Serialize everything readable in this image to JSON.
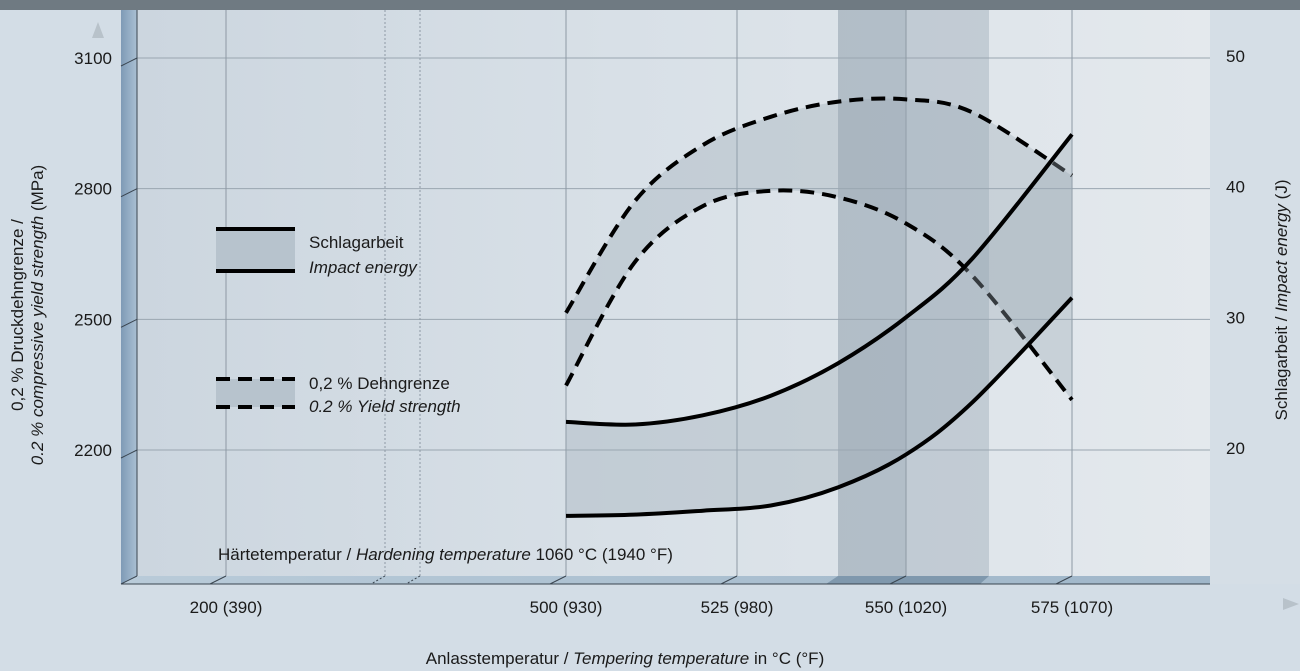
{
  "chart_data": {
    "type": "line",
    "x_tick_labels": [
      "200 (390)",
      "500 (930)",
      "525 (980)",
      "550 (1020)",
      "575 (1070)"
    ],
    "xlabel_regular": "Anlasstemperatur / ",
    "xlabel_italic": "Tempering temperature",
    "xlabel_suffix": " in °C (°F)",
    "left_axis": {
      "label_de": "0,2 % Druckdehngrenze /",
      "label_en_italic": "0.2 % compressive yield strength",
      "label_unit": " (MPa)",
      "ticks": [
        "2200",
        "2500",
        "2800",
        "3100"
      ]
    },
    "right_axis": {
      "label_de": "Schlagarbeit / ",
      "label_en_italic": "Impact energy",
      "label_unit": " (J)",
      "ticks": [
        "20",
        "30",
        "40",
        "50"
      ]
    },
    "annotation": {
      "regular": "Härtetemperatur / ",
      "italic": "Hardening temperature",
      "suffix": " 1060 °C (1940 °F)"
    },
    "legend": [
      {
        "line_style": "solid",
        "label_de": "Schlagarbeit",
        "label_en": "Impact energy"
      },
      {
        "line_style": "dashed",
        "label_de": "0,2 % Dehngrenze",
        "label_en": "0.2 % Yield strength"
      }
    ],
    "series": [
      {
        "name": "Schlagarbeit",
        "axis": "right",
        "x": [
          500,
          510,
          520,
          530,
          540,
          550,
          560,
          575
        ],
        "upper": [
          22.0,
          21.8,
          22.5,
          24.0,
          26.5,
          30.0,
          34.5,
          44.0
        ],
        "lower": [
          14.8,
          14.9,
          15.2,
          15.6,
          17.0,
          19.5,
          23.5,
          31.5
        ]
      },
      {
        "name": "0,2 % Dehngrenze",
        "axis": "left",
        "x": [
          500,
          510,
          520,
          530,
          540,
          550,
          560,
          575
        ],
        "upper": [
          2515,
          2770,
          2900,
          2965,
          3000,
          3005,
          2975,
          2830
        ],
        "lower": [
          2348,
          2630,
          2760,
          2795,
          2780,
          2720,
          2600,
          2315
        ]
      }
    ],
    "grid": true,
    "highlight_band_x": [
      542,
      564
    ]
  }
}
